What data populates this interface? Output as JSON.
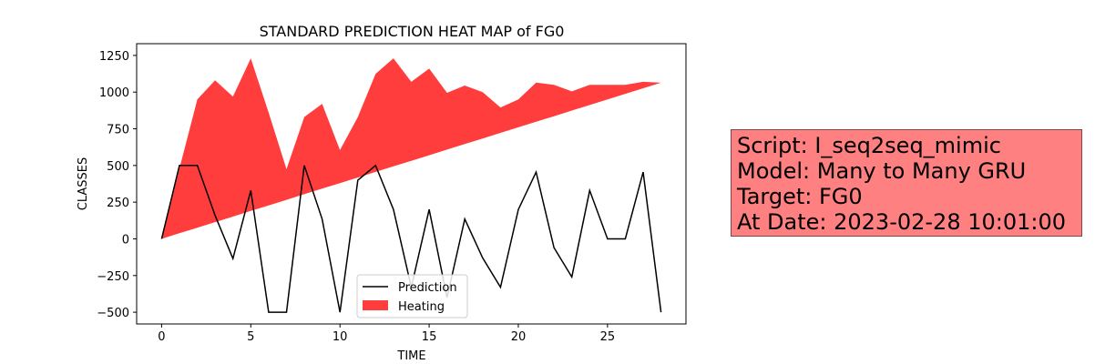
{
  "chart_data": {
    "type": "line",
    "title": "STANDARD PREDICTION HEAT MAP of FG0",
    "xlabel": "TIME",
    "ylabel": "CLASSES",
    "xlim": [
      -1.4,
      29.4
    ],
    "ylim": [
      -580,
      1330
    ],
    "xticks": [
      0,
      5,
      10,
      15,
      20,
      25
    ],
    "yticks": [
      -500,
      -250,
      0,
      250,
      500,
      750,
      1000,
      1250
    ],
    "x": [
      0,
      1,
      2,
      3,
      4,
      5,
      6,
      7,
      8,
      9,
      10,
      11,
      12,
      13,
      14,
      15,
      16,
      17,
      18,
      19,
      20,
      21,
      22,
      23,
      24,
      25,
      26,
      27,
      28
    ],
    "series": [
      {
        "name": "Prediction",
        "type": "line",
        "color": "#000000",
        "values": [
          0,
          500,
          500,
          160,
          -135,
          330,
          -500,
          -500,
          500,
          135,
          -500,
          400,
          500,
          200,
          -330,
          200,
          -400,
          135,
          -130,
          -330,
          200,
          455,
          -60,
          -260,
          330,
          0,
          0,
          455,
          -500
        ]
      },
      {
        "name": "Heating",
        "type": "area",
        "color": "#ff3333",
        "lower": [
          0,
          38,
          76,
          114,
          152,
          190,
          228,
          266,
          304,
          342,
          380,
          418,
          456,
          494,
          532,
          570,
          608,
          646,
          684,
          722,
          760,
          798,
          836,
          874,
          912,
          950,
          988,
          1026,
          1064
        ],
        "upper": [
          0,
          480,
          950,
          1080,
          970,
          1230,
          860,
          475,
          830,
          920,
          605,
          830,
          1125,
          1230,
          1070,
          1160,
          995,
          1045,
          1000,
          895,
          950,
          1065,
          1050,
          1005,
          1050,
          1050,
          1050,
          1070,
          1064
        ]
      }
    ],
    "legend": {
      "position": "bottom-center",
      "entries": [
        "Prediction",
        "Heating"
      ]
    },
    "grid": false
  },
  "info_box": {
    "background": "#ff8080",
    "lines": [
      "Script: I_seq2seq_mimic",
      "Model: Many to Many GRU",
      "Target: FG0",
      "At Date: 2023-02-28 10:01:00"
    ]
  }
}
